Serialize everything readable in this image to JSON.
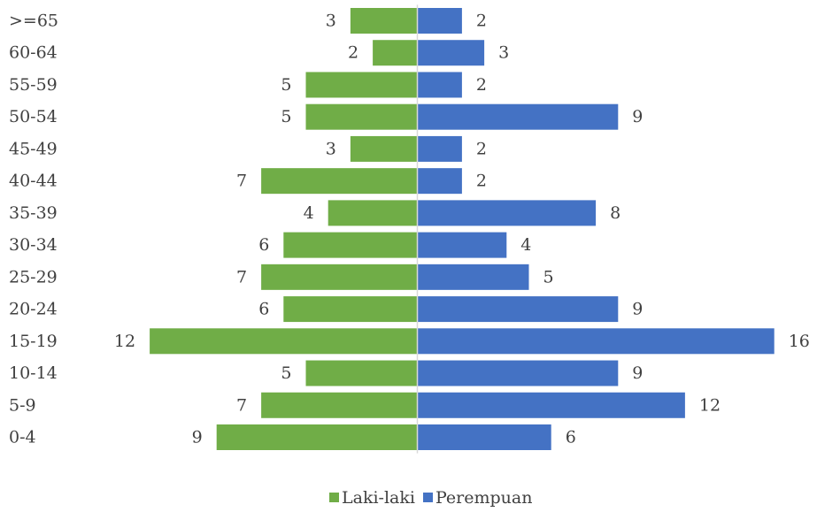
{
  "chart_data": {
    "type": "bar",
    "orientation": "horizontal",
    "categories": [
      "0-4",
      "5-9",
      "10-14",
      "15-19",
      "20-24",
      "25-29",
      "30-34",
      "35-39",
      "40-44",
      "45-49",
      "50-54",
      "55-59",
      "60-64",
      ">=65"
    ],
    "series": [
      {
        "name": "Laki-laki",
        "color": "#70ad47",
        "direction": "left",
        "values": [
          9,
          7,
          5,
          12,
          6,
          7,
          6,
          4,
          7,
          3,
          5,
          5,
          2,
          3
        ]
      },
      {
        "name": "Perempuan",
        "color": "#4472c4",
        "direction": "right",
        "values": [
          6,
          12,
          9,
          16,
          9,
          5,
          4,
          8,
          2,
          2,
          9,
          2,
          3,
          2
        ]
      }
    ],
    "title": "",
    "xlabel": "",
    "ylabel": "",
    "grid": false,
    "legend_position": "bottom",
    "data_labels": true
  }
}
